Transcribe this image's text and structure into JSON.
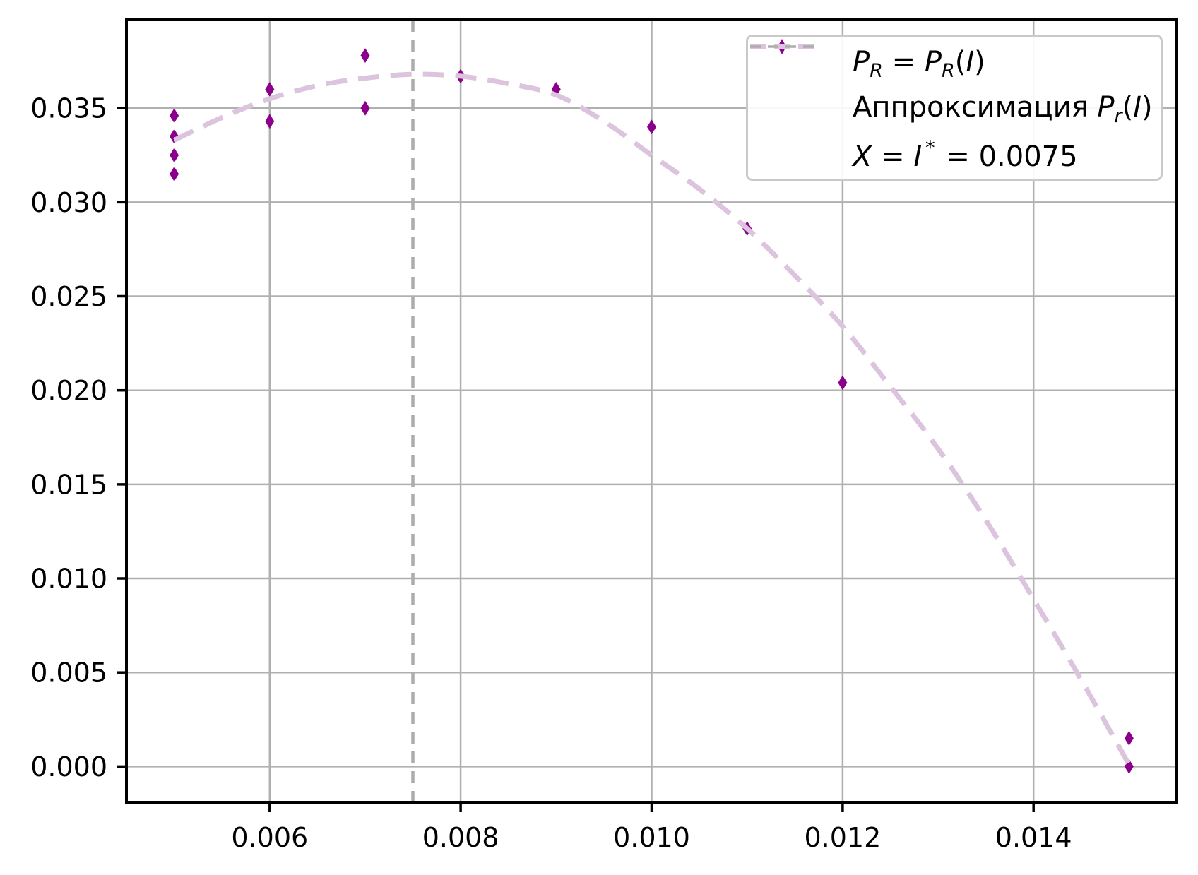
{
  "figure": {
    "background_color": "#ffffff",
    "text_color": "#000000"
  },
  "chart_data": {
    "type": "scatter",
    "title": "",
    "xlabel": "",
    "ylabel": "",
    "grid": true,
    "grid_color": "#b0b0b0",
    "spine_color": "#000000",
    "xlim": [
      0.0045,
      0.0155
    ],
    "ylim": [
      -0.0019,
      0.0397
    ],
    "xticks": [
      0.006,
      0.008,
      0.01,
      0.012,
      0.014
    ],
    "xtick_labels": [
      "0.006",
      "0.008",
      "0.010",
      "0.012",
      "0.014"
    ],
    "yticks": [
      0.0,
      0.005,
      0.01,
      0.015,
      0.02,
      0.025,
      0.03,
      0.035
    ],
    "ytick_labels": [
      "0.000",
      "0.005",
      "0.010",
      "0.015",
      "0.020",
      "0.025",
      "0.030",
      "0.035"
    ],
    "series": [
      {
        "name": "P_R = P_R(I)",
        "kind": "scatter",
        "marker": "thin_diamond",
        "color": "#8B008B",
        "points": [
          [
            0.005,
            0.0346
          ],
          [
            0.005,
            0.0335
          ],
          [
            0.005,
            0.0325
          ],
          [
            0.005,
            0.0315
          ],
          [
            0.006,
            0.036
          ],
          [
            0.006,
            0.0343
          ],
          [
            0.007,
            0.0378
          ],
          [
            0.007,
            0.035
          ],
          [
            0.008,
            0.0367
          ],
          [
            0.009,
            0.036
          ],
          [
            0.01,
            0.034
          ],
          [
            0.011,
            0.0286
          ],
          [
            0.012,
            0.0204
          ],
          [
            0.015,
            0.0015
          ],
          [
            0.015,
            0.0
          ]
        ]
      },
      {
        "name": "Аппроксимация P_r(I)",
        "kind": "line",
        "linestyle": "dashed",
        "color": "#DCC4DE",
        "points": [
          [
            0.005,
            0.0333
          ],
          [
            0.0055,
            0.0345
          ],
          [
            0.006,
            0.0355
          ],
          [
            0.0065,
            0.0362
          ],
          [
            0.007,
            0.0366
          ],
          [
            0.0075,
            0.0368
          ],
          [
            0.008,
            0.0367
          ],
          [
            0.0085,
            0.0363
          ],
          [
            0.009,
            0.0357
          ],
          [
            0.0095,
            0.0343
          ],
          [
            0.01,
            0.0325
          ],
          [
            0.0105,
            0.0307
          ],
          [
            0.011,
            0.0286
          ],
          [
            0.0115,
            0.0261
          ],
          [
            0.012,
            0.0234
          ],
          [
            0.0125,
            0.0202
          ],
          [
            0.013,
            0.0169
          ],
          [
            0.0135,
            0.0131
          ],
          [
            0.014,
            0.0089
          ],
          [
            0.0145,
            0.0046
          ],
          [
            0.015,
            0.0001
          ]
        ]
      },
      {
        "name": "X = I* = 0.0075",
        "kind": "vline",
        "x": 0.0075,
        "linestyle": "dashed",
        "color": "#ACACAC"
      }
    ],
    "legend": {
      "position": "upper right",
      "border_color": "#C9C9C9",
      "items": [
        {
          "sample": "marker-thin-diamond",
          "sample_color": "#8B008B",
          "segments": [
            {
              "t": "P",
              "i": 1
            },
            {
              "t": "R",
              "i": 1,
              "v": "sub"
            },
            {
              "t": " = ",
              "i": 0
            },
            {
              "t": "P",
              "i": 1
            },
            {
              "t": "R",
              "i": 1,
              "v": "sub"
            },
            {
              "t": "(",
              "i": 0
            },
            {
              "t": "I",
              "i": 1
            },
            {
              "t": ")",
              "i": 0
            }
          ]
        },
        {
          "sample": "dashes-3",
          "sample_color": "#DCC4DE",
          "segments": [
            {
              "t": "Аппроксимация ",
              "i": 0
            },
            {
              "t": "P",
              "i": 1
            },
            {
              "t": "r",
              "i": 1,
              "v": "sub"
            },
            {
              "t": "(",
              "i": 0
            },
            {
              "t": "I",
              "i": 1
            },
            {
              "t": ")",
              "i": 0
            }
          ]
        },
        {
          "sample": "dashes-4",
          "sample_color": "#ACACAC",
          "segments": [
            {
              "t": "X",
              "i": 1
            },
            {
              "t": " = ",
              "i": 0
            },
            {
              "t": "I",
              "i": 1
            },
            {
              "t": "*",
              "i": 0,
              "v": "sup"
            },
            {
              "t": " = 0.0075",
              "i": 0
            }
          ]
        }
      ]
    }
  }
}
